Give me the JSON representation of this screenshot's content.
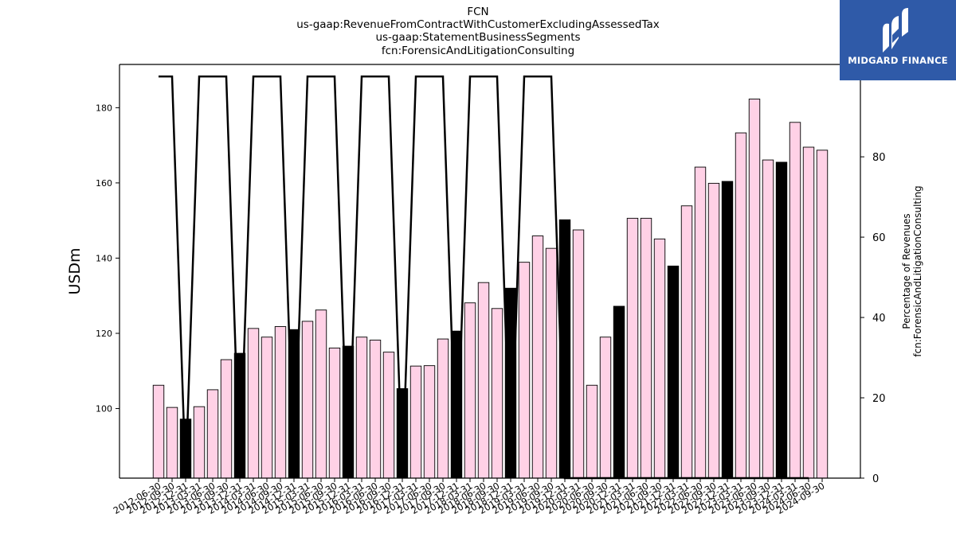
{
  "chart_data": {
    "type": "bar",
    "title_lines": [
      "FCN",
      "us-gaap:RevenueFromContractWithCustomerExcludingAssessedTax",
      "us-gaap:StatementBusinessSegments",
      "fcn:ForensicAndLitigationConsulting"
    ],
    "ylabel": "USDm",
    "ylabel_right": [
      "Percentage of Revenues",
      "fcn:ForensicAndLitigationConsulting"
    ],
    "ylim": [
      81.5,
      191.5
    ],
    "ylim_right": [
      0,
      103
    ],
    "yticks": [
      100,
      120,
      140,
      160,
      180
    ],
    "yticks_right": [
      0,
      20,
      40,
      60,
      80,
      100
    ],
    "categories": [
      "2012-06-30",
      "2012-09-30",
      "2012-12-31",
      "2013-03-31",
      "2013-06-30",
      "2013-09-30",
      "2013-12-31",
      "2014-03-31",
      "2014-06-30",
      "2014-09-30",
      "2014-12-31",
      "2015-03-31",
      "2015-06-30",
      "2015-09-30",
      "2015-12-31",
      "2016-03-31",
      "2016-06-30",
      "2016-09-30",
      "2016-12-31",
      "2017-03-31",
      "2017-06-30",
      "2017-09-30",
      "2017-12-31",
      "2018-03-31",
      "2018-06-30",
      "2018-09-30",
      "2018-12-31",
      "2019-03-31",
      "2019-06-30",
      "2019-09-30",
      "2019-12-31",
      "2020-03-31",
      "2020-06-30",
      "2020-09-30",
      "2020-12-31",
      "2021-03-31",
      "2021-06-30",
      "2021-09-30",
      "2021-12-31",
      "2022-03-31",
      "2022-06-30",
      "2022-09-30",
      "2022-12-31",
      "2023-03-31",
      "2023-06-30",
      "2023-09-30",
      "2023-12-31",
      "2024-03-31",
      "2024-06-30",
      "2024-09-30"
    ],
    "series": [
      {
        "values": [
          106.2,
          100.3,
          97.2,
          100.5,
          105,
          113,
          114.7,
          121.3,
          119,
          121.8,
          121,
          123.2,
          126.2,
          116.1,
          116.6,
          119,
          118.2,
          115,
          105.3,
          111.3,
          111.4,
          118.5,
          120.6,
          128.1,
          133.5,
          126.6,
          132,
          138.9,
          145.9,
          142.6,
          150.2,
          147.5,
          106.2,
          119,
          127.2,
          150.6,
          150.6,
          145.1,
          137.9,
          153.9,
          164.2,
          159.9,
          160.4,
          173.3,
          182.3,
          166.1,
          165.5,
          176.1,
          169.5,
          168.7
        ],
        "highlight": [
          false,
          false,
          true,
          false,
          false,
          false,
          true,
          false,
          false,
          false,
          true,
          false,
          false,
          false,
          true,
          false,
          false,
          false,
          true,
          false,
          false,
          false,
          true,
          false,
          false,
          false,
          true,
          false,
          false,
          false,
          true,
          false,
          false,
          false,
          true,
          false,
          false,
          false,
          true,
          false,
          false,
          false,
          true,
          false,
          false,
          false,
          true,
          false,
          false,
          false
        ],
        "color": "#ffd1e6",
        "highlight_color": "#000000"
      },
      {
        "axis": "right",
        "type": "line",
        "color": "#000000",
        "values": [
          100,
          100,
          0,
          100,
          100,
          100,
          0,
          100,
          100,
          100,
          0,
          100,
          100,
          100,
          0,
          100,
          100,
          100,
          0,
          100,
          100,
          100,
          0,
          100,
          100,
          100,
          0,
          100,
          100,
          100,
          0,
          0,
          0,
          0,
          0,
          0,
          0,
          0,
          0,
          0,
          0,
          0,
          0,
          0,
          0,
          0,
          0,
          0,
          0,
          0
        ],
        "line_x_end_index": 48
      }
    ]
  },
  "logo": {
    "text": "MIDGARD FINANCE",
    "color": "#2f5aa8"
  }
}
